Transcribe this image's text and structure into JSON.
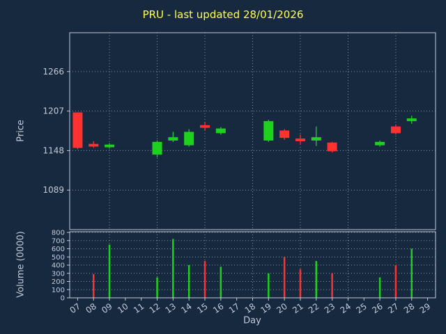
{
  "window": {
    "title": "PRU - last updated 28/01/2026"
  },
  "colors": {
    "background": "#17293f",
    "title_text": "#ffff54",
    "axis_text": "#c3cbdb",
    "frame": "#c3cbdb",
    "grid": "#8893ab",
    "up": "#1fd11f",
    "down": "#ff3232"
  },
  "chart_data": {
    "type": "candlestick",
    "title": "PRU - last updated 28/01/2026",
    "xlabel": "Day",
    "ylabel_price": "Price",
    "ylabel_volume": "Volume (0000)",
    "x_categories": [
      "07",
      "08",
      "09",
      "10",
      "11",
      "12",
      "13",
      "14",
      "15",
      "16",
      "17",
      "18",
      "19",
      "20",
      "21",
      "22",
      "23",
      "24",
      "25",
      "26",
      "27",
      "28",
      "29"
    ],
    "grid_days": [
      "09",
      "12",
      "15",
      "18",
      "21",
      "24",
      "27"
    ],
    "price_ticks": [
      1089,
      1148,
      1207,
      1266
    ],
    "price_range": [
      1030,
      1324
    ],
    "volume_ticks": [
      0,
      100,
      200,
      300,
      400,
      500,
      600,
      700,
      800
    ],
    "volume_range": [
      0,
      800
    ],
    "legend": "none",
    "grid": "dotted",
    "candles": [
      {
        "day": "07",
        "open": 1205,
        "high": 1205,
        "low": 1150,
        "close": 1152,
        "volume": 0
      },
      {
        "day": "08",
        "open": 1158,
        "high": 1162,
        "low": 1152,
        "close": 1154,
        "volume": 290
      },
      {
        "day": "09",
        "open": 1153,
        "high": 1159,
        "low": 1151,
        "close": 1157,
        "volume": 650
      },
      {
        "day": "12",
        "open": 1142,
        "high": 1163,
        "low": 1138,
        "close": 1161,
        "volume": 250
      },
      {
        "day": "13",
        "open": 1163,
        "high": 1176,
        "low": 1161,
        "close": 1168,
        "volume": 720
      },
      {
        "day": "14",
        "open": 1156,
        "high": 1180,
        "low": 1154,
        "close": 1176,
        "volume": 400
      },
      {
        "day": "15",
        "open": 1186,
        "high": 1190,
        "low": 1178,
        "close": 1182,
        "volume": 450
      },
      {
        "day": "16",
        "open": 1174,
        "high": 1183,
        "low": 1172,
        "close": 1181,
        "volume": 380
      },
      {
        "day": "19",
        "open": 1163,
        "high": 1194,
        "low": 1161,
        "close": 1192,
        "volume": 300
      },
      {
        "day": "20",
        "open": 1178,
        "high": 1180,
        "low": 1164,
        "close": 1167,
        "volume": 500
      },
      {
        "day": "21",
        "open": 1166,
        "high": 1172,
        "low": 1158,
        "close": 1162,
        "volume": 350
      },
      {
        "day": "22",
        "open": 1163,
        "high": 1184,
        "low": 1155,
        "close": 1168,
        "volume": 450
      },
      {
        "day": "23",
        "open": 1160,
        "high": 1161,
        "low": 1145,
        "close": 1147,
        "volume": 300
      },
      {
        "day": "26",
        "open": 1156,
        "high": 1163,
        "low": 1154,
        "close": 1161,
        "volume": 250
      },
      {
        "day": "27",
        "open": 1184,
        "high": 1186,
        "low": 1172,
        "close": 1174,
        "volume": 400
      },
      {
        "day": "28",
        "open": 1192,
        "high": 1200,
        "low": 1188,
        "close": 1196,
        "volume": 600
      }
    ]
  }
}
